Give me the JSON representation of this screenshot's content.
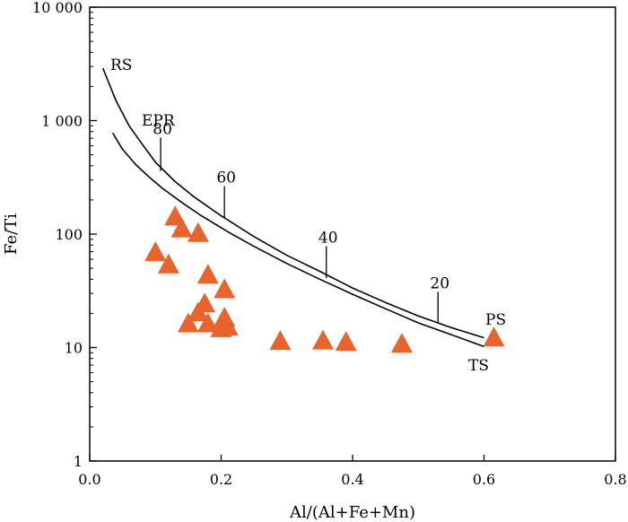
{
  "chart_data": {
    "type": "scatter",
    "xlabel": "Al/(Al+Fe+Mn)",
    "ylabel": "Fe/Ti",
    "xlim": [
      0.0,
      0.8
    ],
    "ylim": [
      1,
      10000
    ],
    "y_scale": "log",
    "grid": false,
    "x_ticks": [
      0.0,
      0.2,
      0.4,
      0.6,
      0.8
    ],
    "x_tick_labels": [
      "0.0",
      "0.2",
      "0.4",
      "0.6",
      "0.8"
    ],
    "y_ticks": [
      1,
      10,
      100,
      1000,
      10000
    ],
    "y_tick_labels": [
      "1",
      "10",
      "100",
      "1 000",
      "10 000"
    ],
    "marker_color": "#e8642c",
    "points": [
      {
        "x": 0.13,
        "y": 140
      },
      {
        "x": 0.14,
        "y": 110
      },
      {
        "x": 0.165,
        "y": 100
      },
      {
        "x": 0.1,
        "y": 68
      },
      {
        "x": 0.12,
        "y": 53
      },
      {
        "x": 0.18,
        "y": 43
      },
      {
        "x": 0.205,
        "y": 32
      },
      {
        "x": 0.175,
        "y": 24
      },
      {
        "x": 0.165,
        "y": 20
      },
      {
        "x": 0.205,
        "y": 18
      },
      {
        "x": 0.15,
        "y": 16
      },
      {
        "x": 0.18,
        "y": 16
      },
      {
        "x": 0.21,
        "y": 15
      },
      {
        "x": 0.2,
        "y": 14.5
      },
      {
        "x": 0.29,
        "y": 11.2
      },
      {
        "x": 0.355,
        "y": 11.3
      },
      {
        "x": 0.39,
        "y": 11.0
      },
      {
        "x": 0.475,
        "y": 10.6
      },
      {
        "x": 0.615,
        "y": 12.0
      }
    ],
    "curves": [
      {
        "label": "RS",
        "points": [
          [
            0.02,
            2900
          ],
          [
            0.04,
            1500
          ],
          [
            0.06,
            900
          ],
          [
            0.08,
            620
          ],
          [
            0.1,
            430
          ],
          [
            0.13,
            290
          ],
          [
            0.16,
            210
          ],
          [
            0.2,
            145
          ],
          [
            0.25,
            95
          ],
          [
            0.3,
            65
          ],
          [
            0.35,
            47
          ],
          [
            0.4,
            33.5
          ],
          [
            0.45,
            25
          ],
          [
            0.5,
            19
          ],
          [
            0.55,
            15
          ],
          [
            0.6,
            12.2
          ]
        ]
      },
      {
        "label": "TS",
        "points": [
          [
            0.035,
            780
          ],
          [
            0.05,
            560
          ],
          [
            0.07,
            410
          ],
          [
            0.09,
            320
          ],
          [
            0.11,
            255
          ],
          [
            0.14,
            190
          ],
          [
            0.17,
            145
          ],
          [
            0.21,
            105
          ],
          [
            0.25,
            78
          ],
          [
            0.3,
            55
          ],
          [
            0.35,
            40
          ],
          [
            0.4,
            29.5
          ],
          [
            0.45,
            22
          ],
          [
            0.5,
            16.5
          ],
          [
            0.55,
            13
          ],
          [
            0.6,
            10.2
          ]
        ]
      }
    ],
    "curve_labels": [
      "RS",
      "EPR",
      "TS",
      "PS"
    ],
    "iso_lines": [
      {
        "label": "80",
        "x": 0.108,
        "y_low": 360,
        "y_high": 710
      },
      {
        "label": "60",
        "x": 0.205,
        "y_low": 140,
        "y_high": 265
      },
      {
        "label": "40",
        "x": 0.36,
        "y_low": 41,
        "y_high": 78
      },
      {
        "label": "20",
        "x": 0.53,
        "y_low": 16.5,
        "y_high": 31
      }
    ]
  }
}
